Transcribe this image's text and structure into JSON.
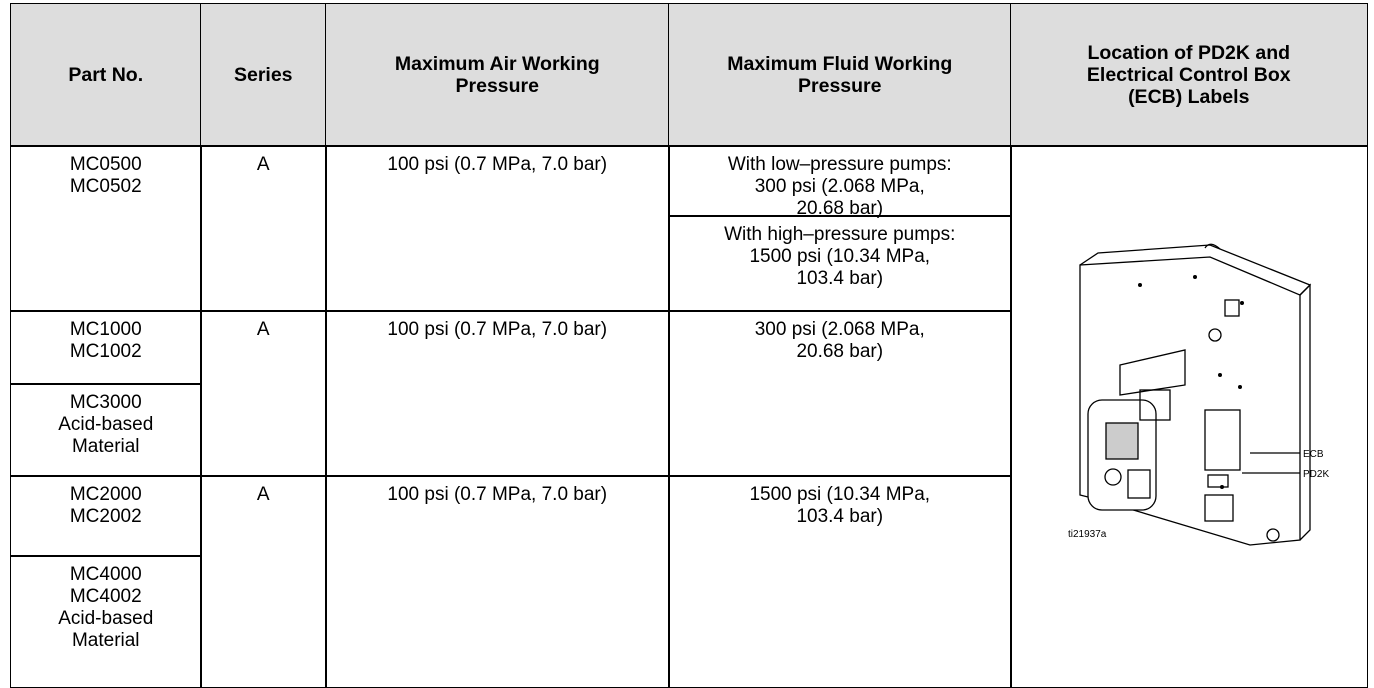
{
  "table": {
    "header": [
      [
        "Part No."
      ],
      [
        "Series"
      ],
      [
        "Maximum Air Working",
        "Pressure"
      ],
      [
        "Maximum Fluid Working",
        "Pressure"
      ],
      [
        "Location of PD2K and",
        "Electrical Control Box",
        "(ECB) Labels"
      ]
    ],
    "groups": [
      {
        "parts": [
          [
            "MC0500",
            "MC0502"
          ]
        ],
        "series": "A",
        "air": "100 psi (0.7 MPa, 7.0 bar)",
        "fluid": [
          [
            "With low–pressure pumps:",
            "300 psi (2.068 MPa,",
            "20.68 bar)"
          ],
          [
            "With high–pressure pumps:",
            "1500 psi (10.34 MPa,",
            "103.4 bar)"
          ]
        ]
      },
      {
        "parts": [
          [
            "MC1000",
            "MC1002"
          ],
          [
            "MC3000",
            "Acid-based",
            "Material"
          ]
        ],
        "series": "A",
        "air": "100 psi (0.7 MPa, 7.0 bar)",
        "fluid": [
          [
            "300 psi (2.068 MPa,",
            "20.68 bar)"
          ]
        ]
      },
      {
        "parts": [
          [
            "MC2000",
            "MC2002"
          ],
          [
            "MC4000",
            "MC4002",
            "Acid-based",
            "Material"
          ]
        ],
        "series": "A",
        "air": "100 psi (0.7 MPa, 7.0 bar)",
        "fluid": [
          [
            "1500 psi (10.34 MPa,",
            "103.4 bar)"
          ]
        ]
      }
    ]
  },
  "figure": {
    "ecb": "ECB",
    "pd2k": "PD2K",
    "id": "ti21937a"
  }
}
